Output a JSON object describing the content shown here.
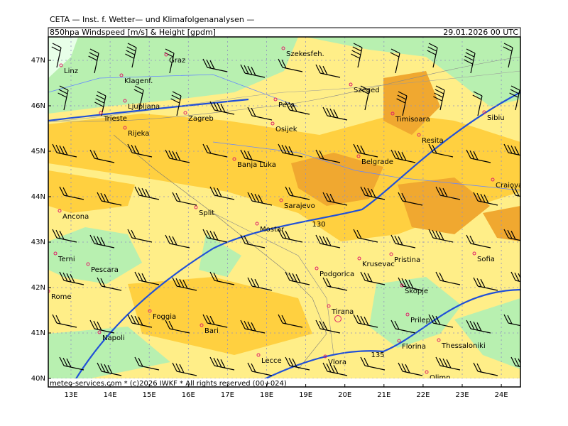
{
  "header": {
    "source": "CETA — Inst. f. Wetter— und Klimafolgenanalysen —",
    "parameter": "850hpa Windspeed [m/s] & Height [gpdm]",
    "datetime": "29.01.2026 00 UTC"
  },
  "axes": {
    "lat_labels": [
      "47N",
      "46N",
      "45N",
      "44N",
      "43N",
      "42N",
      "41N",
      "40N"
    ],
    "lon_labels": [
      "13E",
      "14E",
      "15E",
      "16E",
      "17E",
      "18E",
      "19E",
      "20E",
      "21E",
      "22E",
      "23E",
      "24E"
    ]
  },
  "cities": [
    "Linz",
    "Graz",
    "Szekesfeh.",
    "Klagenf.",
    "Szeged",
    "Ljubljana",
    "Pecs",
    "Trieste",
    "Zagreb",
    "Timisoara",
    "Sibiu",
    "Rijeka",
    "Osijek",
    "Resita",
    "Banja Luka",
    "Belgrade",
    "Craiova",
    "Sarajevo",
    "Ancona",
    "Split",
    "Mostar",
    "Terni",
    "Pristina",
    "Krusevac",
    "Sofia",
    "Pescara",
    "Podgorica",
    "Skopje",
    "Rome",
    "Tirana",
    "Foggia",
    "Prilep",
    "Bari",
    "Napoli",
    "Thessaloniki",
    "Florina",
    "Lecce",
    "Vlora",
    "Olimp"
  ],
  "contour_labels": [
    "130",
    "135"
  ],
  "footer": "meteo-services.com * (c)2026 IWKF * All rights reserved (00+024)"
}
